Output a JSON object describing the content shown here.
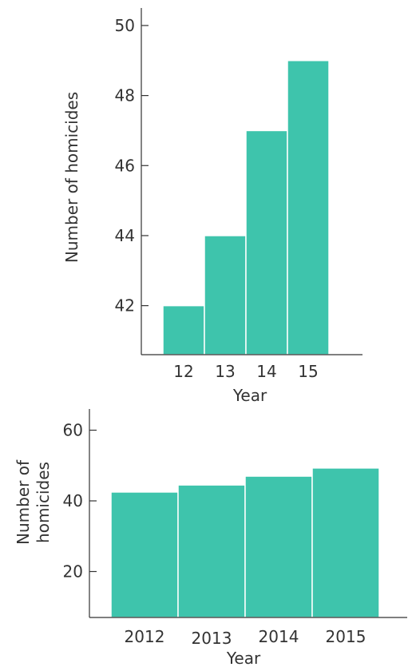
{
  "chart_data": [
    {
      "type": "bar",
      "title": "",
      "xlabel": "Year",
      "ylabel": "Number of homicides",
      "categories": [
        "12",
        "13",
        "14",
        "15"
      ],
      "values": [
        42,
        44,
        47,
        49
      ],
      "yticks": [
        42,
        44,
        46,
        48,
        50
      ],
      "ylim": [
        40.6,
        50.5
      ],
      "grid": false,
      "bar_color": "#3ec4ac"
    },
    {
      "type": "bar",
      "title": "",
      "xlabel": "Year",
      "ylabel_lines": [
        "Number of",
        "homicides"
      ],
      "categories": [
        "2012",
        "2013",
        "2014",
        "2015"
      ],
      "values": [
        42.5,
        44.5,
        47,
        49.3
      ],
      "yticks": [
        20,
        40,
        60
      ],
      "ylim": [
        7,
        66
      ],
      "grid": false,
      "bar_color": "#3ec4ac"
    }
  ]
}
